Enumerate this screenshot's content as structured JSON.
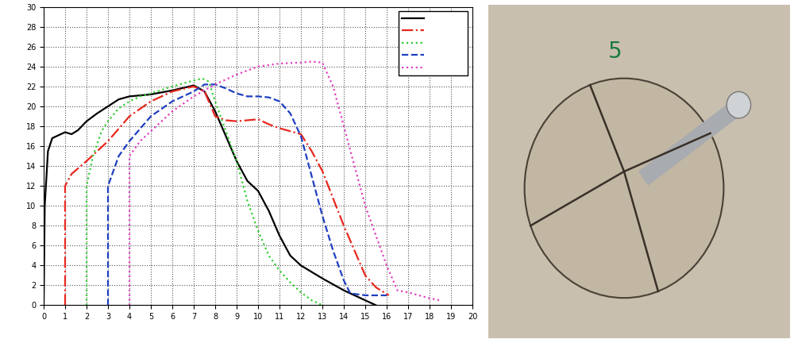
{
  "chart_data": {
    "type": "line",
    "xlim": [
      0,
      20
    ],
    "xticks": [
      0,
      1,
      2,
      3,
      4,
      5,
      6,
      7,
      8,
      9,
      10,
      11,
      12,
      13,
      14,
      15,
      16,
      17,
      18,
      19,
      20
    ],
    "ylim": [
      0,
      30
    ],
    "yticks": [
      0,
      2,
      4,
      6,
      8,
      10,
      12,
      14,
      16,
      18,
      20,
      22,
      24,
      26,
      28,
      30
    ],
    "grid": true,
    "legend": "upper right",
    "series": [
      {
        "color": "#000000",
        "line_style": "solid",
        "x": [
          0,
          0.05,
          0.2,
          0.4,
          0.7,
          1,
          1.3,
          1.6,
          2,
          2.5,
          3,
          3.5,
          4,
          5,
          6,
          7,
          7.5,
          8,
          8.5,
          9,
          9.5,
          10,
          10.5,
          11,
          11.5,
          12,
          13,
          14,
          15,
          15.5
        ],
        "values": [
          0,
          10,
          15.5,
          16.8,
          17.1,
          17.4,
          17.2,
          17.6,
          18.5,
          19.3,
          20,
          20.7,
          21,
          21.2,
          21.6,
          22.1,
          21.5,
          19.5,
          17,
          14.5,
          12.5,
          11.5,
          9.5,
          7,
          5,
          4,
          2.7,
          1.5,
          0.5,
          0
        ]
      },
      {
        "color": "#e8281e",
        "line_style": "dashdot",
        "x": [
          1,
          1,
          1.3,
          2,
          3,
          4,
          5,
          6,
          7,
          7.5,
          8,
          8.5,
          9,
          10,
          10.5,
          11,
          12,
          12.5,
          13,
          14,
          15,
          15.5,
          16.1
        ],
        "values": [
          0,
          12,
          13.2,
          14.5,
          16.5,
          19,
          20.5,
          21.5,
          22,
          21.5,
          19,
          18.6,
          18.5,
          18.7,
          18.2,
          17.8,
          17.2,
          15.5,
          13.5,
          8,
          3,
          1.8,
          1
        ]
      },
      {
        "color": "#33cc33",
        "line_style": "dotted",
        "x": [
          2,
          2,
          2.3,
          2.7,
          3,
          3.5,
          4,
          4.5,
          5,
          6,
          7,
          7.4,
          7.7,
          8,
          8.5,
          9,
          9.5,
          10,
          10.5,
          11,
          11.5,
          12,
          12.5,
          13
        ],
        "values": [
          0,
          12,
          15,
          17.5,
          18.5,
          19.8,
          20.5,
          21,
          21.3,
          22,
          22.6,
          22.8,
          22.5,
          20.5,
          17.5,
          14.5,
          10.5,
          7.5,
          5,
          3.5,
          2.3,
          1.3,
          0.5,
          0
        ]
      },
      {
        "color": "#1f3fbf",
        "line_style": "dashed",
        "x": [
          3,
          3,
          3.5,
          4,
          5,
          6,
          7,
          7.5,
          8,
          8.5,
          9,
          9.5,
          10,
          10.5,
          11,
          11.5,
          12,
          12.5,
          13,
          13.5,
          14,
          14.3,
          15,
          16
        ],
        "values": [
          0,
          12,
          15,
          16.5,
          19,
          20.5,
          21.5,
          22.2,
          22.2,
          21.8,
          21.3,
          21,
          21,
          20.9,
          20.5,
          19.3,
          17,
          13,
          9,
          5.5,
          2.5,
          1.2,
          1,
          1
        ]
      },
      {
        "color": "#e040c0",
        "line_style": "dotted",
        "x": [
          4,
          4,
          4.5,
          5,
          6,
          7,
          8,
          9,
          10,
          11,
          12,
          12.5,
          13,
          13.5,
          14,
          15,
          16,
          16.5,
          17,
          18,
          18.5
        ],
        "values": [
          0,
          15,
          16.5,
          17.5,
          19.5,
          21,
          22.2,
          23.2,
          24,
          24.3,
          24.4,
          24.5,
          24.4,
          22,
          18,
          10,
          4,
          1.5,
          1.3,
          0.7,
          0.5
        ]
      }
    ]
  },
  "photo": {
    "label": "5"
  }
}
